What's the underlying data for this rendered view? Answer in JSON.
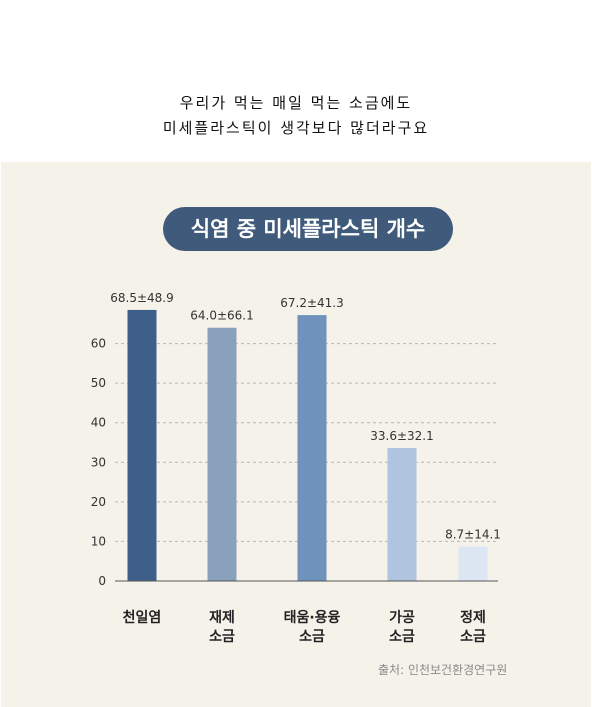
{
  "caption": {
    "line1": "우리가 먹는 매일 먹는 소금에도",
    "line2": "미세플라스틱이 생각보다 많더라구요"
  },
  "chart_data": {
    "type": "bar",
    "title": "식염 중 미세플라스틱 개수",
    "categories": [
      [
        "천일염"
      ],
      [
        "재제",
        "소금"
      ],
      [
        "태움·용융",
        "소금"
      ],
      [
        "가공",
        "소금"
      ],
      [
        "정제",
        "소금"
      ]
    ],
    "values": [
      68.5,
      64.0,
      67.2,
      33.6,
      8.7
    ],
    "data_labels": [
      "68.5±48.9",
      "64.0±66.1",
      "67.2±41.3",
      "33.6±32.1",
      "8.7±14.1"
    ],
    "bar_colors": [
      "#3d5f8a",
      "#8aa1bd",
      "#6f93bd",
      "#b0c4df",
      "#dde7f3"
    ],
    "yticks": [
      0,
      10,
      20,
      30,
      40,
      50,
      60
    ],
    "ylim": [
      0,
      70
    ],
    "grid": true,
    "source": "출처: 인천보건환경연구원"
  }
}
